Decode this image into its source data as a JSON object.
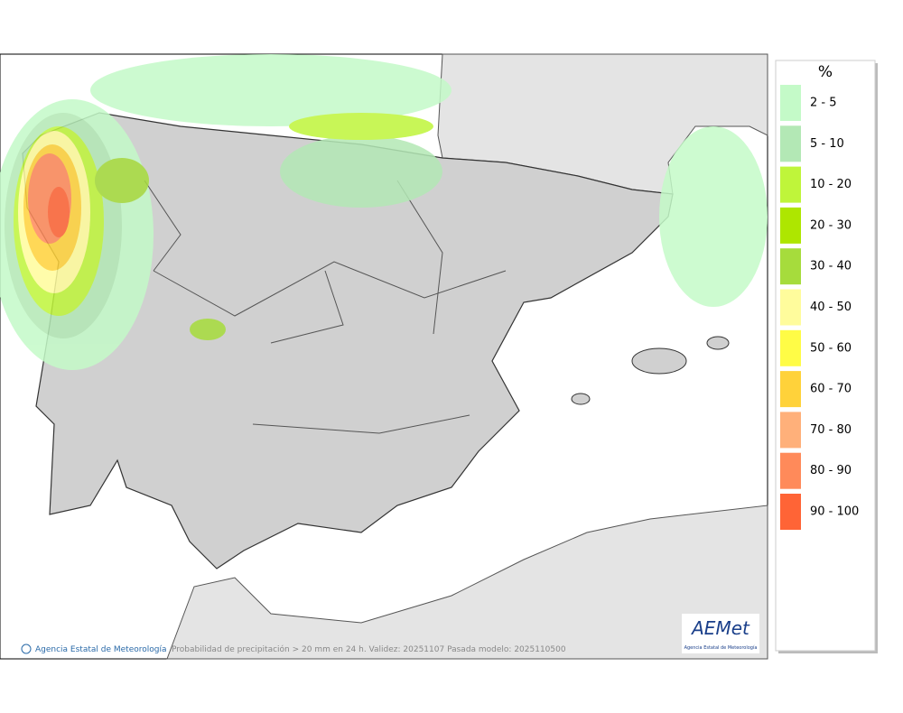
{
  "legend": {
    "title": "%",
    "items": [
      {
        "label": "2 - 5",
        "color": "#c4fac8"
      },
      {
        "label": "5 - 10",
        "color": "#b3e8b5"
      },
      {
        "label": "10 - 20",
        "color": "#bff53a"
      },
      {
        "label": "20 - 30",
        "color": "#aee600"
      },
      {
        "label": "30 - 40",
        "color": "#a6dc3c"
      },
      {
        "label": "40 - 50",
        "color": "#fffc9c"
      },
      {
        "label": "50 - 60",
        "color": "#fffc46"
      },
      {
        "label": "60 - 70",
        "color": "#ffd23a"
      },
      {
        "label": "70 - 80",
        "color": "#ffb07a"
      },
      {
        "label": "80 - 90",
        "color": "#ff8a5a"
      },
      {
        "label": "90 - 100",
        "color": "#ff6436"
      }
    ]
  },
  "footer": {
    "agency": "Agencia Estatal de Meteorología",
    "caption": "Probabilidad de precipitación > 20 mm en 24 h. Validez: 20251107 Pasada modelo: 2025110500"
  },
  "logo": {
    "name": "AEMet",
    "subtitle": "Agencia Estatal de Meteorología"
  }
}
